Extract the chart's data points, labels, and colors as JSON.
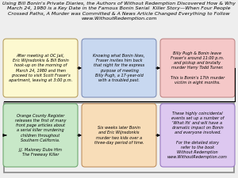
{
  "title_line1": "Using Bill Bonin's Private Diaries, the Authors of Without Redemption Discovered How & Why",
  "title_line2": "March 24, 1980 is a Key Date in the Famous Bonin Serial  Killer Story—When Four People",
  "title_line3": "Crossed Paths, A Murder was Committed & A News Article Changed Everything to Follow",
  "title_line4": "www.WithoutRedemption.com",
  "title_fontsize": 4.5,
  "bg_color": "#eeeeee",
  "outer_box_color": "#cccccc",
  "boxes": [
    {
      "text": "After meeting at OC Jail,\nEric Wijnsdonkis & Bill Bonin\nhook-up on the morning of\nMarch 24, 1980 and then\nproceed to visit Scott Fraser's\napartment, leaving at 3:00 p.m.",
      "color": "#fdf9d0",
      "edge_color": "#b8a060",
      "row": 0,
      "col": 0
    },
    {
      "text": "Knowing what Bonin likes,\nFraser invites him back\nthat night for the express\npurpose of meeting\nBilly Pugh, a 17-year-old\nwith a troubled past.",
      "color": "#c8d8f0",
      "edge_color": "#8090b8",
      "row": 0,
      "col": 1
    },
    {
      "text": "Billy Pugh & Bonin leave\nFraser's around 11:00 p.m.\nand pickup and brutally\nmurder Harry Todd Turner.\n\nThis is Bonin's 17th murder\nvictim in eight months.",
      "color": "#f5c8c8",
      "edge_color": "#c08888",
      "row": 0,
      "col": 2
    },
    {
      "text": "Orange County Register\nreleases the first of many\nfront page articles about\na serial killer murdering\nchildren throughout\nSouthern California.\n\nJ.J. Maloney Dubs Him\nThe Freeway Killer",
      "color": "#c8e8c8",
      "edge_color": "#70a870",
      "row": 1,
      "col": 0
    },
    {
      "text": "Six weeks later Bonin\nand Eric Wijnsdonkis\nmurder two kids over a\nthree-day period of time.",
      "color": "#f8ddb8",
      "edge_color": "#c09060",
      "row": 1,
      "col": 1
    },
    {
      "text": "These highly coincidental\nevents set up a number of\n'What Ifs' and will have a\ndramatic impact on Bonin\nand everyone involved.\n\nFor the detailed story\nrefer to the book\nWithout Redemption\nwww.WithoutRedemption.com",
      "color": "#ddc8f0",
      "edge_color": "#9878c0",
      "row": 1,
      "col": 2
    }
  ]
}
